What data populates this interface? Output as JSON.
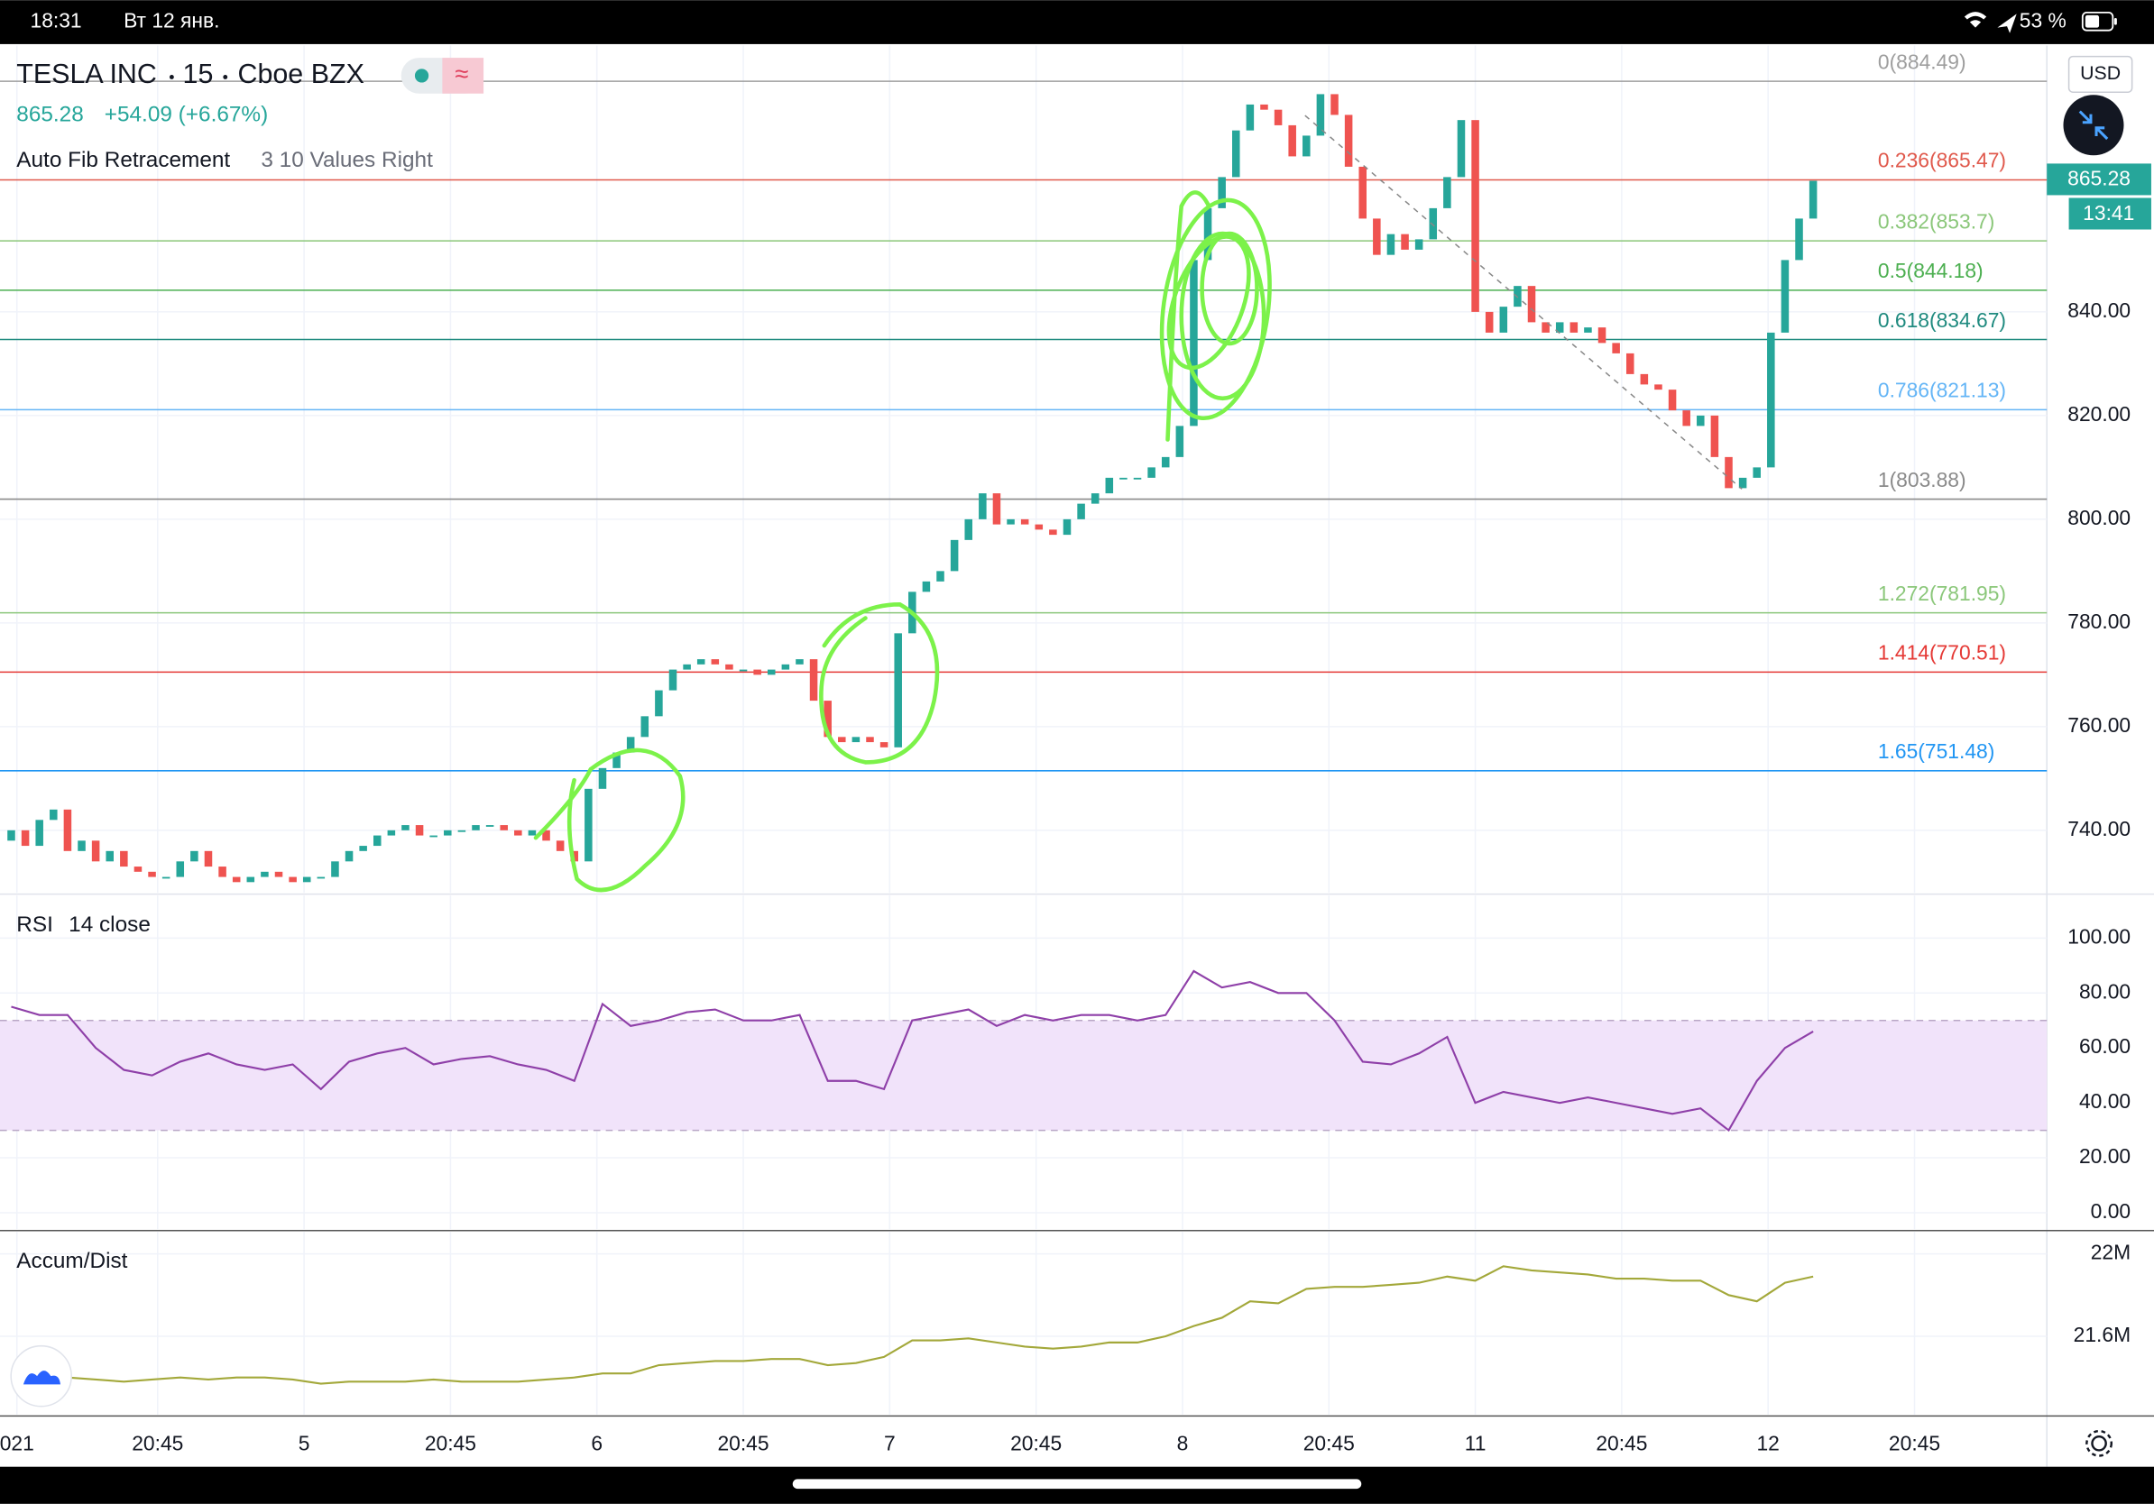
{
  "status_bar": {
    "time": "18:31",
    "date": "Вт 12 янв.",
    "battery": "53 %"
  },
  "header": {
    "symbol": "TESLA INC",
    "interval": "15",
    "exchange": "Cboe BZX",
    "price": "865.28",
    "change": "+54.09 (+6.67%)",
    "indicator": "Auto Fib Retracement",
    "indicator_params": "3 10 Values Right",
    "currency": "USD",
    "price_badge": "865.28",
    "countdown": "13:41"
  },
  "chart_data": [
    {
      "type": "candlestick",
      "up_color": "#26a69a",
      "down_color": "#ef5350",
      "open": 738,
      "closes": [
        740,
        737,
        742,
        744,
        736,
        738,
        734,
        736,
        733,
        732,
        731,
        731,
        734,
        736,
        733,
        731,
        730,
        731,
        732,
        731,
        730,
        731,
        731,
        734,
        736,
        737,
        739,
        740,
        741,
        739,
        739,
        740,
        740,
        741,
        741,
        740,
        739,
        740,
        738,
        736,
        734,
        748,
        752,
        755,
        758,
        762,
        767,
        771,
        772,
        773,
        772,
        771,
        771,
        770,
        771,
        772,
        773,
        765,
        758,
        757,
        758,
        757,
        756,
        778,
        786,
        788,
        790,
        796,
        800,
        805,
        799,
        800,
        799,
        798,
        797,
        800,
        803,
        805,
        808,
        808,
        808,
        810,
        812,
        818,
        850,
        860,
        866,
        875,
        880,
        879,
        876,
        870,
        874,
        882,
        878,
        868,
        858,
        851,
        855,
        852,
        854,
        860,
        866,
        877,
        840,
        836,
        841,
        845,
        838,
        836,
        838,
        836,
        837,
        834,
        832,
        828,
        826,
        825,
        821,
        818,
        820,
        812,
        806,
        808,
        810,
        836,
        850,
        858,
        865.28
      ],
      "xlim": [
        -0.8,
        144.6
      ],
      "xticks": [
        {
          "value": 0.4,
          "label": "021"
        },
        {
          "value": 10.4,
          "label": "20:45"
        },
        {
          "value": 20.8,
          "label": "5"
        },
        {
          "value": 31.2,
          "label": "20:45"
        },
        {
          "value": 41.6,
          "label": "6"
        },
        {
          "value": 52,
          "label": "20:45"
        },
        {
          "value": 62.4,
          "label": "7"
        },
        {
          "value": 72.8,
          "label": "20:45"
        },
        {
          "value": 83.2,
          "label": "8"
        },
        {
          "value": 93.6,
          "label": "20:45"
        },
        {
          "value": 104,
          "label": "11"
        },
        {
          "value": 114.4,
          "label": "20:45"
        },
        {
          "value": 124.8,
          "label": "12"
        },
        {
          "value": 135.2,
          "label": "20:45"
        }
      ],
      "ylim": [
        727.95,
        891.39
      ],
      "yticks": [
        {
          "value": 740,
          "label": "740.00"
        },
        {
          "value": 760,
          "label": "760.00"
        },
        {
          "value": 780,
          "label": "780.00"
        },
        {
          "value": 800,
          "label": "800.00"
        },
        {
          "value": 820,
          "label": "820.00"
        },
        {
          "value": 840,
          "label": "840.00"
        }
      ],
      "fib_levels": [
        {
          "label": "0(884.49)",
          "value": 884.49,
          "color": "#9e9e9e"
        },
        {
          "label": "0.236(865.47)",
          "value": 865.47,
          "color": "#e0594c"
        },
        {
          "label": "0.382(853.7)",
          "value": 853.7,
          "color": "#8bc77a"
        },
        {
          "label": "0.5(844.18)",
          "value": 844.18,
          "color": "#4caf50"
        },
        {
          "label": "0.618(834.67)",
          "value": 834.67,
          "color": "#1f8a7f"
        },
        {
          "label": "0.786(821.13)",
          "value": 821.13,
          "color": "#64b5f6"
        },
        {
          "label": "1(803.88)",
          "value": 803.88,
          "color": "#8a8a8a"
        },
        {
          "label": "1.272(781.95)",
          "value": 781.95,
          "color": "#8bc77a"
        },
        {
          "label": "1.414(770.51)",
          "value": 770.51,
          "color": "#e53935"
        },
        {
          "label": "1.65(751.48)",
          "value": 751.48,
          "color": "#2196f3"
        }
      ]
    },
    {
      "type": "line",
      "title": "RSI",
      "params": "14 close",
      "color": "#8e3fa8",
      "band": [
        30,
        70
      ],
      "band_color": "#f1e3fa",
      "x": [
        0,
        2,
        4,
        6,
        8,
        10,
        12,
        14,
        16,
        18,
        20,
        22,
        24,
        26,
        28,
        30,
        32,
        34,
        36,
        38,
        40,
        42,
        44,
        46,
        48,
        50,
        52,
        54,
        56,
        58,
        60,
        62,
        64,
        66,
        68,
        70,
        72,
        74,
        76,
        78,
        80,
        82,
        84,
        86,
        88,
        90,
        92,
        94,
        96,
        98,
        100,
        102,
        104,
        106,
        108,
        110,
        112,
        114,
        116,
        118,
        120,
        122,
        124,
        126,
        128
      ],
      "values": [
        75,
        72,
        72,
        60,
        52,
        50,
        55,
        58,
        54,
        52,
        54,
        45,
        55,
        58,
        60,
        54,
        56,
        57,
        54,
        52,
        48,
        76,
        68,
        70,
        73,
        74,
        70,
        70,
        72,
        48,
        48,
        45,
        70,
        72,
        74,
        68,
        72,
        70,
        72,
        72,
        70,
        72,
        88,
        82,
        84,
        80,
        80,
        70,
        55,
        54,
        58,
        64,
        40,
        44,
        42,
        40,
        42,
        40,
        38,
        36,
        38,
        30,
        48,
        60,
        66
      ],
      "ylim": [
        -6,
        115.5
      ],
      "yticks": [
        {
          "value": 0,
          "label": "0.00"
        },
        {
          "value": 20,
          "label": "20.00"
        },
        {
          "value": 40,
          "label": "40.00"
        },
        {
          "value": 60,
          "label": "60.00"
        },
        {
          "value": 80,
          "label": "80.00"
        },
        {
          "value": 100,
          "label": "100.00"
        }
      ]
    },
    {
      "type": "line",
      "title": "Accum/Dist",
      "color": "#a3a83a",
      "x": [
        0,
        2,
        4,
        6,
        8,
        10,
        12,
        14,
        16,
        18,
        20,
        22,
        24,
        26,
        28,
        30,
        32,
        34,
        36,
        38,
        40,
        42,
        44,
        46,
        48,
        50,
        52,
        54,
        56,
        58,
        60,
        62,
        64,
        66,
        68,
        70,
        72,
        74,
        76,
        78,
        80,
        82,
        84,
        86,
        88,
        90,
        92,
        94,
        96,
        98,
        100,
        102,
        104,
        106,
        108,
        110,
        112,
        114,
        116,
        118,
        120,
        122,
        124,
        126,
        128
      ],
      "values": [
        21410000,
        21390000,
        21400000,
        21390000,
        21380000,
        21390000,
        21400000,
        21390000,
        21400000,
        21400000,
        21390000,
        21370000,
        21380000,
        21380000,
        21380000,
        21390000,
        21380000,
        21380000,
        21380000,
        21390000,
        21400000,
        21420000,
        21420000,
        21460000,
        21470000,
        21480000,
        21480000,
        21490000,
        21490000,
        21460000,
        21470000,
        21500000,
        21580000,
        21580000,
        21590000,
        21570000,
        21550000,
        21540000,
        21550000,
        21570000,
        21570000,
        21600000,
        21650000,
        21690000,
        21770000,
        21760000,
        21830000,
        21840000,
        21840000,
        21850000,
        21860000,
        21890000,
        21870000,
        21940000,
        21920000,
        21910000,
        21900000,
        21880000,
        21880000,
        21870000,
        21870000,
        21800000,
        21770000,
        21860000,
        21890000
      ],
      "ylim": [
        21220000,
        22106667
      ],
      "yticks": [
        {
          "value": 21600000,
          "label": "21.6M"
        },
        {
          "value": 22000000,
          "label": "22M"
        }
      ]
    }
  ]
}
